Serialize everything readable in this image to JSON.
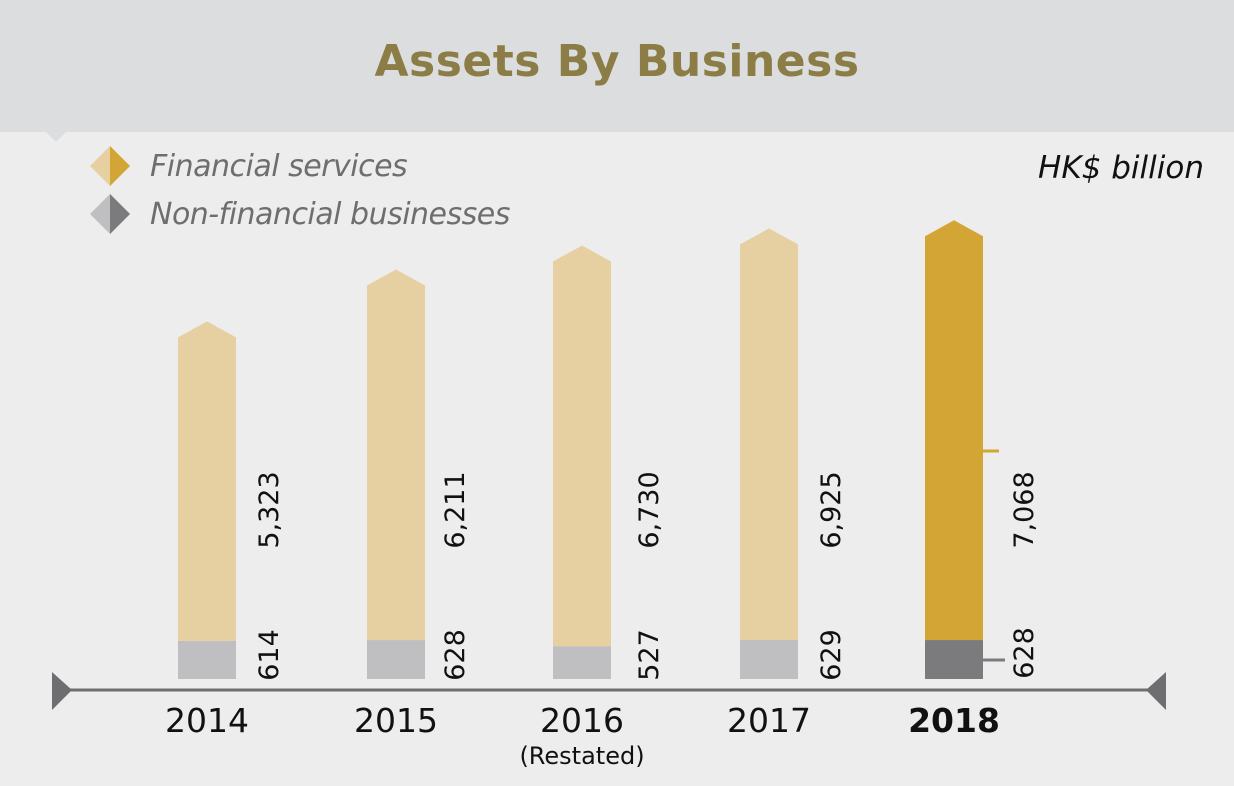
{
  "chart_data": {
    "type": "bar",
    "title": "Assets By Business",
    "unit": "HK$ billion",
    "categories": [
      "2014",
      "2015",
      "2016",
      "2017",
      "2018"
    ],
    "category_notes": [
      "",
      "",
      "(Restated)",
      "",
      ""
    ],
    "highlighted_category": "2018",
    "series": [
      {
        "name": "Financial services",
        "values": [
          5323,
          6211,
          6730,
          6925,
          7068
        ]
      },
      {
        "name": "Non-financial businesses",
        "values": [
          614,
          628,
          527,
          629,
          628
        ]
      }
    ],
    "value_labels": {
      "Financial services": [
        "5,323",
        "6,211",
        "6,730",
        "6,925",
        "7,068"
      ],
      "Non-financial businesses": [
        "614",
        "628",
        "527",
        "629",
        "628"
      ]
    },
    "stacked": true,
    "colors": {
      "financial": "#e6d0a1",
      "financial_highlight": "#d3a534",
      "financial_dark": "#d3a534",
      "nonfinancial": "#bfbfc1",
      "nonfinancial_highlight": "#7b7b7e",
      "nonfinancial_dark": "#7b7b7e",
      "title": "#8c7d47",
      "axis": "#6e6e70"
    },
    "legend_position": "top-left",
    "grid": false
  }
}
